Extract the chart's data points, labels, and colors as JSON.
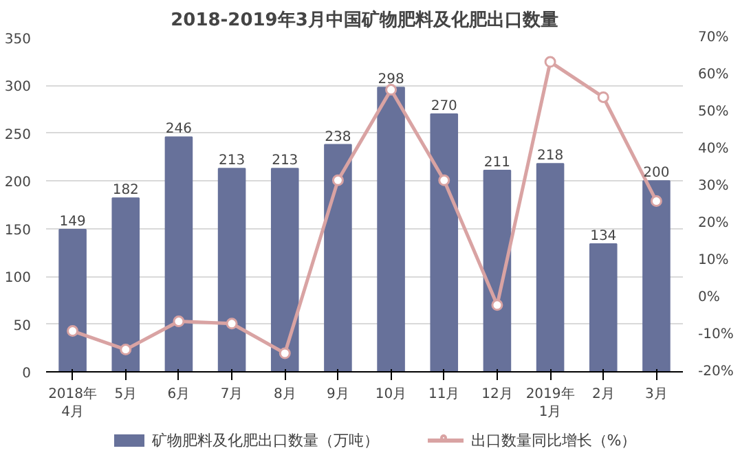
{
  "chart_data": {
    "type": "bar",
    "title": "2018-2019年3月中国矿物肥料及化肥出口数量",
    "categories": [
      "2018年\n4月",
      "5月",
      "6月",
      "7月",
      "8月",
      "9月",
      "10月",
      "11月",
      "12月",
      "2019年\n1月",
      "2月",
      "3月"
    ],
    "series": [
      {
        "name": "矿物肥料及化肥出口数量（万吨）",
        "color": "#67719a",
        "values": [
          149,
          182,
          246,
          213,
          213,
          238,
          298,
          270,
          211,
          218,
          134,
          200
        ],
        "value_labels": [
          "149",
          "182",
          "246",
          "213",
          "213",
          "238",
          "298",
          "270",
          "211",
          "218",
          "134",
          "200"
        ]
      },
      {
        "name": "出口数量同比增长（%）",
        "type": "line",
        "axis": "y2",
        "color": "#d9a3a3",
        "marker": "circle",
        "values": [
          -9,
          -14,
          -6.4,
          -7,
          -15,
          31.6,
          56,
          31.6,
          -2,
          63.5,
          54,
          26
        ]
      }
    ],
    "ylim": [
      0,
      350
    ],
    "yticks": [
      0,
      50,
      100,
      150,
      200,
      250,
      300,
      350
    ],
    "y2lim": [
      -20,
      70
    ],
    "y2ticks": [
      {
        "value": -20,
        "label": "-20%"
      },
      {
        "value": -10,
        "label": "-10%"
      },
      {
        "value": 0,
        "label": "0%"
      },
      {
        "value": 10,
        "label": "10%"
      },
      {
        "value": 20,
        "label": "20%"
      },
      {
        "value": 30,
        "label": "30%"
      },
      {
        "value": 40,
        "label": "40%"
      },
      {
        "value": 50,
        "label": "50%"
      },
      {
        "value": 60,
        "label": "60%"
      },
      {
        "value": 70,
        "label": "70%"
      }
    ],
    "grid": "y",
    "legend": "bottom"
  }
}
